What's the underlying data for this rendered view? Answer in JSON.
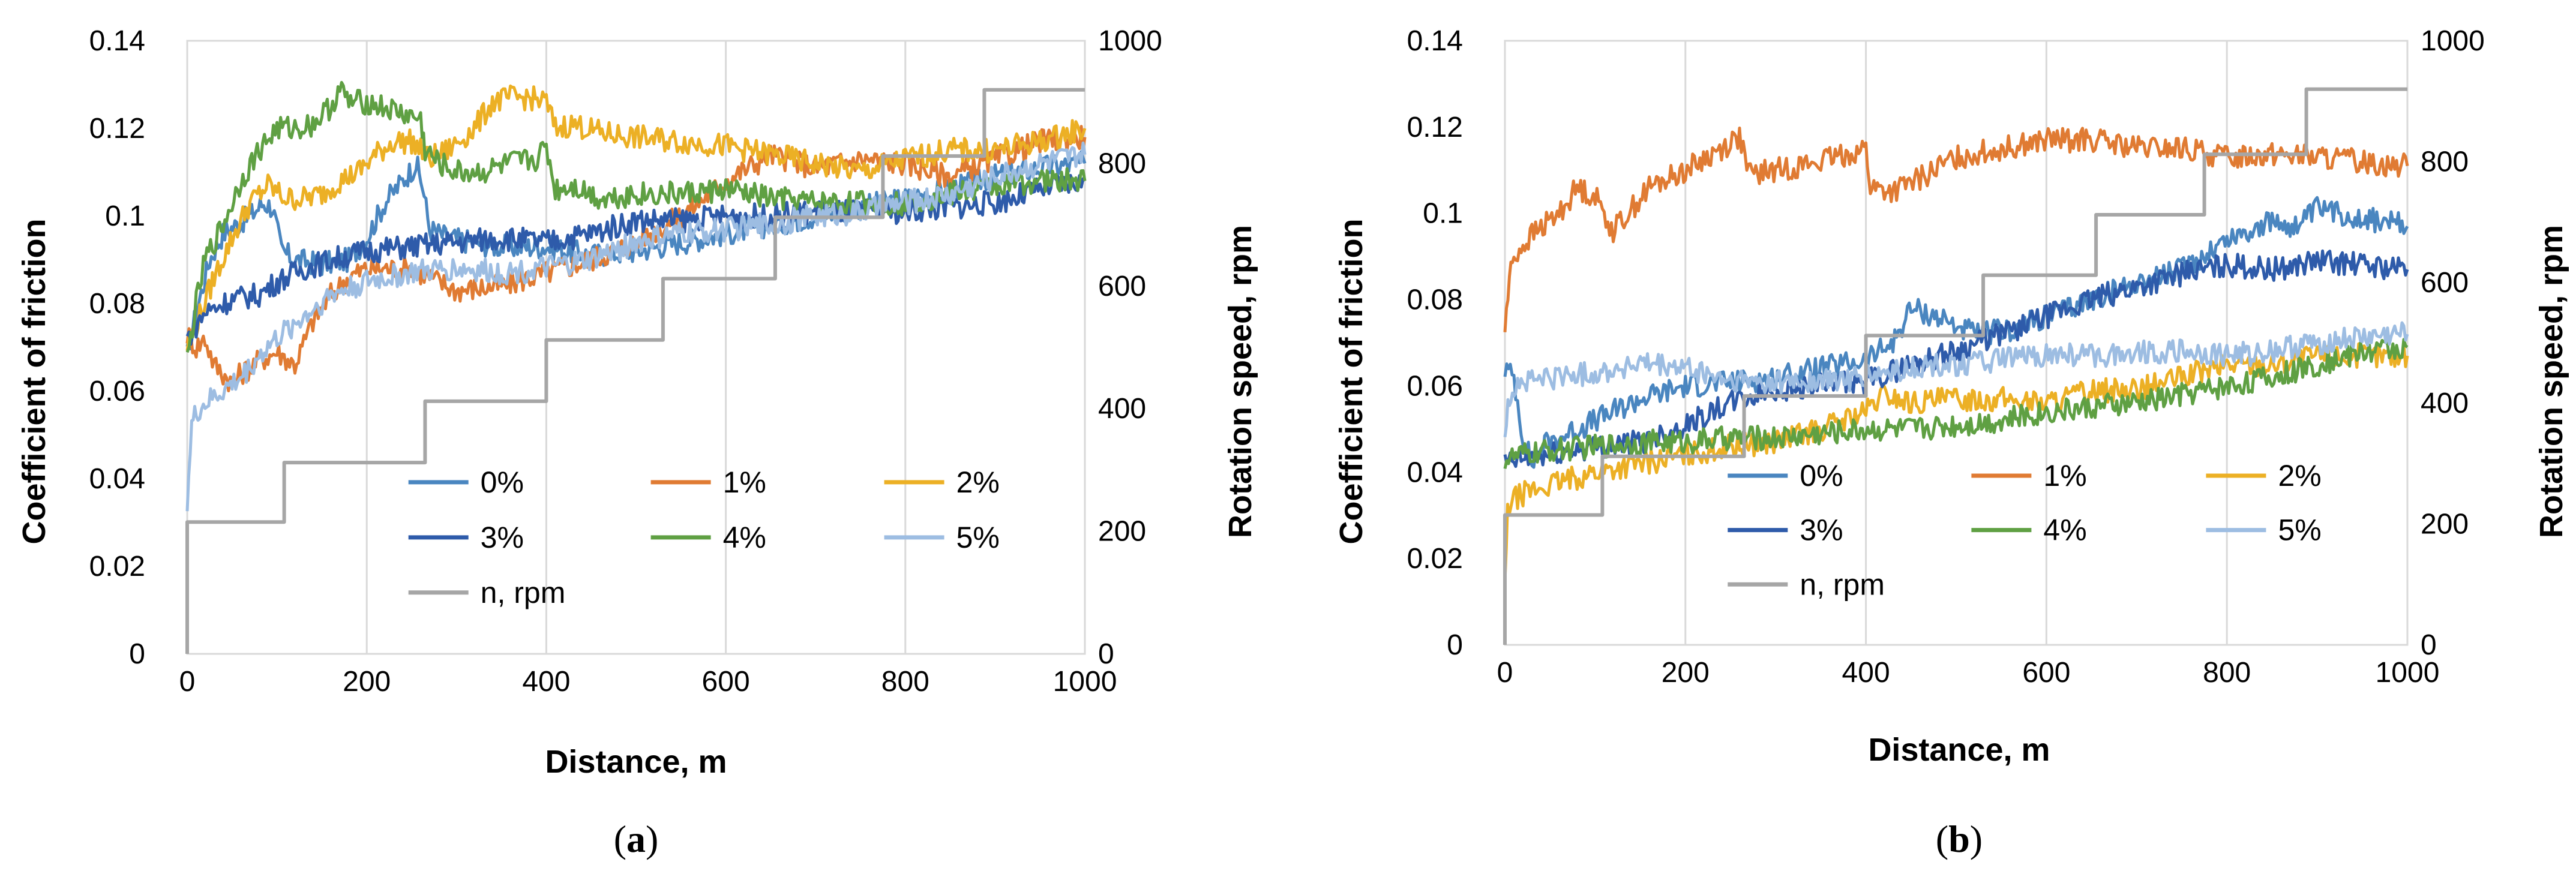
{
  "chart_data": [
    {
      "type": "line",
      "panel_label": "a",
      "xlabel": "Distance, m",
      "ylabel": "Coefficient of friction",
      "y2label": "Rotation speed, rpm",
      "xlim": [
        0,
        1000
      ],
      "ylim": [
        0,
        0.14
      ],
      "y2lim": [
        0,
        1000
      ],
      "xticks": [
        "0",
        "200",
        "400",
        "600",
        "800",
        "1000"
      ],
      "yticks": [
        "0",
        "0.02",
        "0.04",
        "0.06",
        "0.08",
        "0.1",
        "0.12",
        "0.14"
      ],
      "y2ticks": [
        "0",
        "200",
        "400",
        "600",
        "800",
        "1000"
      ],
      "grid": "vertical",
      "legend": "bottom-right",
      "series": [
        {
          "name": "0%",
          "color": "#4A86C0",
          "x": [
            0,
            10,
            25,
            40,
            55,
            70,
            85,
            95,
            105,
            120,
            150,
            180,
            200,
            220,
            240,
            255,
            262,
            270,
            290,
            320,
            350,
            400,
            450,
            500,
            550,
            600,
            650,
            700,
            750,
            800,
            850,
            900,
            950,
            1000
          ],
          "y": [
            0.068,
            0.078,
            0.09,
            0.096,
            0.098,
            0.1,
            0.103,
            0.102,
            0.092,
            0.09,
            0.089,
            0.09,
            0.095,
            0.103,
            0.108,
            0.112,
            0.107,
            0.097,
            0.095,
            0.094,
            0.093,
            0.093,
            0.091,
            0.092,
            0.094,
            0.096,
            0.098,
            0.1,
            0.102,
            0.104,
            0.106,
            0.109,
            0.111,
            0.112
          ]
        },
        {
          "name": "1%",
          "color": "#E07B33",
          "x": [
            0,
            10,
            20,
            30,
            40,
            50,
            60,
            80,
            100,
            120,
            140,
            160,
            180,
            200,
            250,
            300,
            350,
            400,
            450,
            500,
            550,
            600,
            650,
            700,
            750,
            800,
            850,
            900,
            950,
            1000
          ],
          "y": [
            0.073,
            0.07,
            0.072,
            0.066,
            0.064,
            0.062,
            0.064,
            0.067,
            0.069,
            0.066,
            0.076,
            0.082,
            0.086,
            0.088,
            0.088,
            0.083,
            0.084,
            0.087,
            0.09,
            0.094,
            0.1,
            0.108,
            0.114,
            0.111,
            0.113,
            0.112,
            0.109,
            0.113,
            0.117,
            0.118
          ]
        },
        {
          "name": "2%",
          "color": "#ECB025",
          "x": [
            0,
            10,
            30,
            50,
            70,
            90,
            110,
            130,
            150,
            170,
            190,
            210,
            230,
            250,
            260,
            270,
            290,
            320,
            340,
            360,
            380,
            400,
            410,
            430,
            460,
            500,
            550,
            600,
            650,
            700,
            750,
            800,
            850,
            900,
            950,
            1000
          ],
          "y": [
            0.07,
            0.075,
            0.086,
            0.095,
            0.103,
            0.107,
            0.104,
            0.104,
            0.105,
            0.108,
            0.11,
            0.114,
            0.117,
            0.117,
            0.115,
            0.113,
            0.115,
            0.12,
            0.126,
            0.127,
            0.127,
            0.126,
            0.12,
            0.121,
            0.119,
            0.118,
            0.117,
            0.116,
            0.114,
            0.112,
            0.11,
            0.113,
            0.115,
            0.115,
            0.117,
            0.12
          ]
        },
        {
          "name": "3%",
          "color": "#2E5BAA",
          "x": [
            0,
            20,
            50,
            80,
            100,
            130,
            160,
            200,
            250,
            300,
            350,
            400,
            450,
            500,
            550,
            600,
            650,
            700,
            750,
            800,
            850,
            900,
            950,
            1000
          ],
          "y": [
            0.072,
            0.078,
            0.081,
            0.082,
            0.085,
            0.088,
            0.09,
            0.092,
            0.093,
            0.094,
            0.095,
            0.094,
            0.096,
            0.099,
            0.099,
            0.1,
            0.1,
            0.101,
            0.101,
            0.101,
            0.102,
            0.103,
            0.106,
            0.108
          ]
        },
        {
          "name": "4%",
          "color": "#5FA043",
          "x": [
            0,
            10,
            20,
            40,
            60,
            80,
            100,
            120,
            140,
            160,
            170,
            180,
            200,
            230,
            260,
            265,
            280,
            300,
            330,
            360,
            390,
            400,
            410,
            430,
            460,
            500,
            550,
            600,
            650,
            700,
            750,
            800,
            850,
            900,
            950,
            1000
          ],
          "y": [
            0.067,
            0.08,
            0.09,
            0.098,
            0.108,
            0.115,
            0.12,
            0.12,
            0.121,
            0.125,
            0.129,
            0.126,
            0.126,
            0.124,
            0.122,
            0.115,
            0.112,
            0.11,
            0.11,
            0.112,
            0.113,
            0.116,
            0.106,
            0.107,
            0.104,
            0.105,
            0.105,
            0.106,
            0.104,
            0.103,
            0.103,
            0.103,
            0.105,
            0.107,
            0.108,
            0.108
          ]
        },
        {
          "name": "5%",
          "color": "#9DBDE2",
          "x": [
            0,
            5,
            10,
            20,
            40,
            60,
            80,
            100,
            130,
            160,
            200,
            250,
            300,
            350,
            400,
            450,
            500,
            550,
            600,
            650,
            700,
            750,
            800,
            850,
            900,
            950,
            1000
          ],
          "y": [
            0.035,
            0.052,
            0.055,
            0.057,
            0.06,
            0.063,
            0.068,
            0.072,
            0.077,
            0.082,
            0.085,
            0.087,
            0.088,
            0.087,
            0.088,
            0.09,
            0.094,
            0.096,
            0.097,
            0.098,
            0.1,
            0.101,
            0.103,
            0.105,
            0.109,
            0.112,
            0.114
          ]
        },
        {
          "name": "n, rpm",
          "color": "#A6A6A6",
          "axis": "right",
          "steps": true,
          "x": [
            0,
            0,
            108,
            108,
            265,
            265,
            400,
            400,
            530,
            530,
            655,
            655,
            775,
            775,
            888,
            888,
            1000
          ],
          "y": [
            0,
            215,
            215,
            312,
            312,
            412,
            412,
            512,
            512,
            612,
            612,
            712,
            712,
            812,
            812,
            920,
            920
          ]
        }
      ]
    },
    {
      "type": "line",
      "panel_label": "b",
      "xlabel": "Distance, m",
      "ylabel": "Coefficient of friction",
      "y2label": "Rotation speed, rpm",
      "xlim": [
        0,
        1000
      ],
      "ylim": [
        0,
        0.14
      ],
      "y2lim": [
        0,
        1000
      ],
      "xticks": [
        "0",
        "200",
        "400",
        "600",
        "800",
        "1000"
      ],
      "yticks": [
        "0",
        "0.02",
        "0.04",
        "0.06",
        "0.08",
        "0.1",
        "0.12",
        "0.14"
      ],
      "y2ticks": [
        "0",
        "200",
        "400",
        "600",
        "800",
        "1000"
      ],
      "grid": "vertical",
      "legend": "bottom-right",
      "series": [
        {
          "name": "0%",
          "color": "#4A86C0",
          "x": [
            0,
            10,
            20,
            30,
            40,
            60,
            100,
            150,
            200,
            260,
            300,
            350,
            400,
            430,
            450,
            480,
            520,
            560,
            600,
            650,
            700,
            750,
            800,
            850,
            880,
            900,
            950,
            1000
          ],
          "y": [
            0.064,
            0.062,
            0.048,
            0.042,
            0.046,
            0.048,
            0.052,
            0.057,
            0.06,
            0.061,
            0.062,
            0.064,
            0.066,
            0.07,
            0.078,
            0.076,
            0.072,
            0.073,
            0.076,
            0.08,
            0.084,
            0.087,
            0.094,
            0.098,
            0.097,
            0.101,
            0.099,
            0.097
          ]
        },
        {
          "name": "1%",
          "color": "#E07B33",
          "x": [
            0,
            5,
            10,
            30,
            60,
            80,
            100,
            120,
            140,
            160,
            200,
            240,
            260,
            270,
            300,
            350,
            400,
            405,
            430,
            460,
            500,
            550,
            600,
            650,
            700,
            750,
            800,
            850,
            900,
            950,
            1000
          ],
          "y": [
            0.073,
            0.085,
            0.09,
            0.095,
            0.1,
            0.106,
            0.104,
            0.096,
            0.101,
            0.106,
            0.11,
            0.115,
            0.118,
            0.109,
            0.11,
            0.112,
            0.115,
            0.106,
            0.105,
            0.108,
            0.113,
            0.115,
            0.117,
            0.117,
            0.115,
            0.115,
            0.113,
            0.114,
            0.113,
            0.112,
            0.111
          ]
        },
        {
          "name": "2%",
          "color": "#ECB025",
          "x": [
            0,
            3,
            6,
            20,
            50,
            100,
            150,
            200,
            250,
            300,
            350,
            400,
            420,
            450,
            500,
            550,
            600,
            650,
            700,
            750,
            800,
            850,
            900,
            950,
            1000
          ],
          "y": [
            0.014,
            0.03,
            0.033,
            0.035,
            0.037,
            0.04,
            0.042,
            0.044,
            0.046,
            0.047,
            0.05,
            0.054,
            0.058,
            0.056,
            0.057,
            0.057,
            0.056,
            0.059,
            0.059,
            0.062,
            0.065,
            0.065,
            0.067,
            0.067,
            0.067
          ]
        },
        {
          "name": "3%",
          "color": "#2E5BAA",
          "x": [
            0,
            20,
            50,
            100,
            150,
            200,
            250,
            300,
            350,
            400,
            450,
            500,
            550,
            600,
            650,
            700,
            750,
            800,
            850,
            900,
            950,
            1000
          ],
          "y": [
            0.042,
            0.043,
            0.044,
            0.046,
            0.047,
            0.051,
            0.056,
            0.059,
            0.06,
            0.061,
            0.065,
            0.068,
            0.072,
            0.076,
            0.08,
            0.083,
            0.086,
            0.088,
            0.087,
            0.089,
            0.088,
            0.087
          ]
        },
        {
          "name": "4%",
          "color": "#5FA043",
          "x": [
            0,
            20,
            50,
            100,
            150,
            200,
            250,
            300,
            350,
            400,
            450,
            500,
            550,
            600,
            650,
            700,
            750,
            800,
            850,
            900,
            950,
            1000
          ],
          "y": [
            0.043,
            0.044,
            0.045,
            0.046,
            0.047,
            0.047,
            0.048,
            0.048,
            0.049,
            0.05,
            0.05,
            0.051,
            0.052,
            0.054,
            0.055,
            0.056,
            0.058,
            0.06,
            0.062,
            0.065,
            0.068,
            0.069
          ]
        },
        {
          "name": "5%",
          "color": "#9DBDE2",
          "x": [
            0,
            5,
            10,
            20,
            50,
            100,
            150,
            200,
            250,
            300,
            350,
            400,
            450,
            500,
            550,
            600,
            650,
            700,
            750,
            800,
            850,
            900,
            950,
            1000
          ],
          "y": [
            0.049,
            0.057,
            0.06,
            0.061,
            0.062,
            0.063,
            0.065,
            0.064,
            0.061,
            0.061,
            0.061,
            0.062,
            0.064,
            0.065,
            0.066,
            0.067,
            0.067,
            0.068,
            0.068,
            0.067,
            0.068,
            0.07,
            0.071,
            0.072
          ]
        },
        {
          "name": "n, rpm",
          "color": "#A6A6A6",
          "axis": "right",
          "steps": true,
          "x": [
            0,
            0,
            108,
            108,
            265,
            265,
            400,
            400,
            530,
            530,
            655,
            655,
            775,
            775,
            888,
            888,
            1000
          ],
          "y": [
            0,
            215,
            215,
            312,
            312,
            412,
            412,
            512,
            512,
            612,
            612,
            712,
            712,
            812,
            812,
            920,
            920
          ]
        }
      ]
    }
  ]
}
